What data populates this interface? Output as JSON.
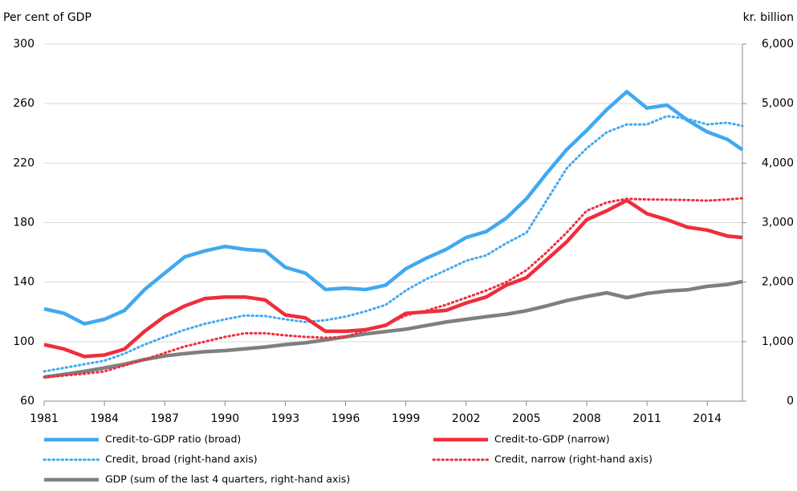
{
  "chart_data": {
    "type": "line",
    "y_label": "Per cent of GDP",
    "y2_label": "kr. billion",
    "x": [
      1981,
      1982,
      1983,
      1984,
      1985,
      1986,
      1987,
      1988,
      1989,
      1990,
      1991,
      1992,
      1993,
      1994,
      1995,
      1996,
      1997,
      1998,
      1999,
      2000,
      2001,
      2002,
      2003,
      2004,
      2005,
      2006,
      2007,
      2008,
      2009,
      2010,
      2011,
      2012,
      2013,
      2014,
      2015,
      2015.75
    ],
    "xlim": [
      1981,
      2015.75
    ],
    "xticks": [
      1981,
      1984,
      1987,
      1990,
      1993,
      1996,
      1999,
      2002,
      2005,
      2008,
      2011,
      2014
    ],
    "ylim": [
      60,
      300
    ],
    "yticks": [
      60,
      100,
      140,
      180,
      220,
      260,
      300
    ],
    "y2lim": [
      0,
      6000
    ],
    "y2ticks": [
      0,
      {
        "value": 1000,
        "label": "1,000"
      },
      {
        "value": 2000,
        "label": "2,000"
      },
      {
        "value": 3000,
        "label": "3,000"
      },
      {
        "value": 4000,
        "label": "4,000"
      },
      {
        "value": 5000,
        "label": "5,000"
      },
      {
        "value": 6000,
        "label": "6,000"
      }
    ],
    "grid": true,
    "legend": "bottom",
    "series": [
      {
        "name": "Credit-to-GDP ratio (broad)",
        "color": "#41a9ee",
        "dashed": false,
        "axis": "y",
        "values": [
          122,
          119,
          112,
          115,
          121,
          135,
          146,
          157,
          161,
          164,
          162,
          161,
          150,
          146,
          135,
          136,
          135,
          138,
          149,
          156,
          162,
          170,
          174,
          183,
          196,
          213,
          229,
          242,
          256,
          268,
          257,
          259,
          249,
          241,
          236,
          229
        ]
      },
      {
        "name": "Credit-to-GDP (narrow)",
        "color": "#ee2e3c",
        "dashed": false,
        "axis": "y",
        "values": [
          98,
          95,
          90,
          91,
          95,
          107,
          117,
          124,
          129,
          130,
          130,
          128,
          118,
          116,
          107,
          107,
          108,
          111,
          119,
          120,
          121,
          126,
          130,
          138,
          143,
          155,
          167,
          182,
          188,
          195,
          186,
          182,
          177,
          175,
          171,
          170
        ]
      },
      {
        "name": "Credit, broad (right-hand axis)",
        "color": "#41a9ee",
        "dashed": true,
        "axis": "y2",
        "values": [
          500,
          560,
          620,
          680,
          800,
          950,
          1080,
          1200,
          1300,
          1375,
          1440,
          1430,
          1375,
          1330,
          1360,
          1420,
          1510,
          1620,
          1860,
          2050,
          2200,
          2360,
          2450,
          2655,
          2830,
          3370,
          3910,
          4250,
          4520,
          4650,
          4650,
          4790,
          4745,
          4650,
          4680,
          4625
        ]
      },
      {
        "name": "Credit, narrow (right-hand axis)",
        "color": "#ee2e3c",
        "dashed": true,
        "axis": "y2",
        "values": [
          405,
          430,
          460,
          500,
          600,
          700,
          810,
          920,
          1000,
          1080,
          1140,
          1140,
          1105,
          1080,
          1065,
          1080,
          1185,
          1280,
          1440,
          1520,
          1620,
          1740,
          1860,
          2000,
          2200,
          2500,
          2830,
          3200,
          3340,
          3400,
          3390,
          3385,
          3380,
          3370,
          3390,
          3410
        ]
      },
      {
        "name": "GDP (sum of the last 4 quarters, right-hand axis)",
        "color": "#7f7f7f",
        "dashed": false,
        "axis": "y2",
        "values": [
          405,
          450,
          500,
          560,
          620,
          700,
          760,
          800,
          830,
          850,
          880,
          910,
          950,
          980,
          1030,
          1080,
          1130,
          1170,
          1210,
          1270,
          1330,
          1375,
          1420,
          1460,
          1520,
          1600,
          1690,
          1760,
          1820,
          1740,
          1810,
          1850,
          1870,
          1930,
          1960,
          2010
        ]
      }
    ]
  }
}
